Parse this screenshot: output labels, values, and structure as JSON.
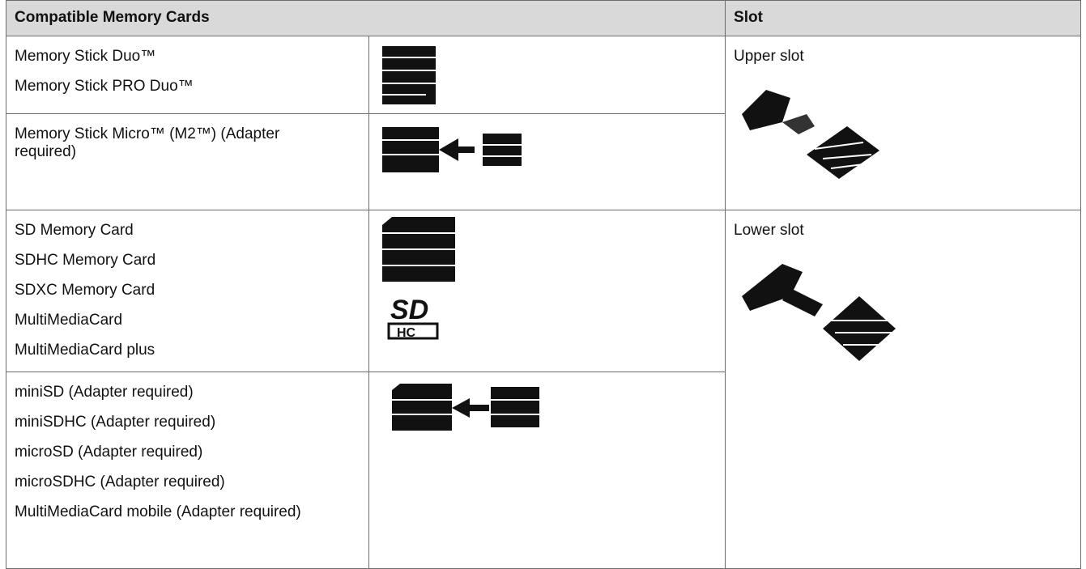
{
  "table": {
    "header": [
      "Compatible Memory Cards",
      "Slot"
    ],
    "groups": [
      {
        "slot": "Upper slot",
        "rows": [
          [
            "Memory Stick Duo™",
            "Memory Stick PRO Duo™"
          ],
          [
            "Memory Stick Micro™ (M2™) (Adapter required)"
          ]
        ]
      },
      {
        "slot": "Lower slot",
        "rows": [
          [
            "SD Memory Card",
            "SDHC Memory Card",
            "SDXC Memory Card",
            "MultiMediaCard",
            "MultiMediaCard plus"
          ],
          [
            "miniSD (Adapter required)",
            "miniSDHC (Adapter required)",
            "microSD (Adapter required)",
            "microSDHC (Adapter required)",
            "MultiMediaCard mobile (Adapter required)"
          ]
        ]
      }
    ]
  }
}
